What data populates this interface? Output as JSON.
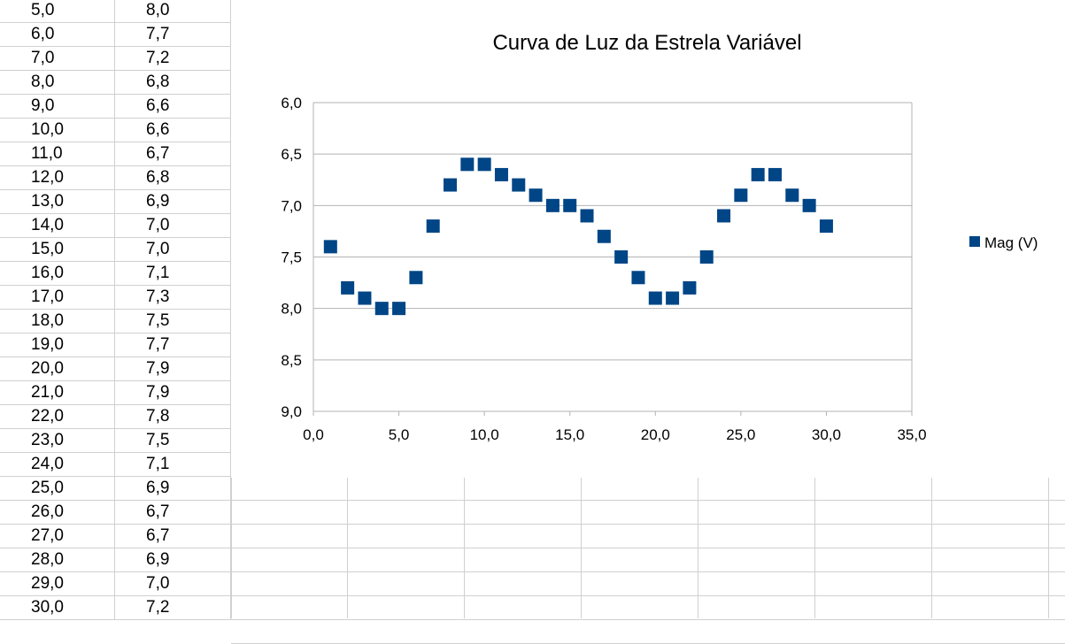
{
  "sheet": {
    "rows": [
      [
        "5,0",
        "8,0"
      ],
      [
        "6,0",
        "7,7"
      ],
      [
        "7,0",
        "7,2"
      ],
      [
        "8,0",
        "6,8"
      ],
      [
        "9,0",
        "6,6"
      ],
      [
        "10,0",
        "6,6"
      ],
      [
        "11,0",
        "6,7"
      ],
      [
        "12,0",
        "6,8"
      ],
      [
        "13,0",
        "6,9"
      ],
      [
        "14,0",
        "7,0"
      ],
      [
        "15,0",
        "7,0"
      ],
      [
        "16,0",
        "7,1"
      ],
      [
        "17,0",
        "7,3"
      ],
      [
        "18,0",
        "7,5"
      ],
      [
        "19,0",
        "7,7"
      ],
      [
        "20,0",
        "7,9"
      ],
      [
        "21,0",
        "7,9"
      ],
      [
        "22,0",
        "7,8"
      ],
      [
        "23,0",
        "7,5"
      ],
      [
        "24,0",
        "7,1"
      ],
      [
        "25,0",
        "6,9"
      ],
      [
        "26,0",
        "6,7"
      ],
      [
        "27,0",
        "6,7"
      ],
      [
        "28,0",
        "6,9"
      ],
      [
        "29,0",
        "7,0"
      ],
      [
        "30,0",
        "7,2"
      ]
    ]
  },
  "chart_data": {
    "type": "scatter",
    "title": "Curva de Luz da Estrela Variável",
    "xlabel": "",
    "ylabel": "",
    "xlim": [
      0,
      35
    ],
    "ylim": [
      6,
      9
    ],
    "y_inverted": true,
    "x_ticks": [
      "0,0",
      "5,0",
      "10,0",
      "15,0",
      "20,0",
      "25,0",
      "30,0",
      "35,0"
    ],
    "y_ticks": [
      "6,0",
      "6,5",
      "7,0",
      "7,5",
      "8,0",
      "8,5",
      "9,0"
    ],
    "grid": "horizontal",
    "legend_position": "right",
    "series": [
      {
        "name": "Mag (V)",
        "color": "#004586",
        "marker": "square",
        "x": [
          1,
          2,
          3,
          4,
          5,
          6,
          7,
          8,
          9,
          10,
          11,
          12,
          13,
          14,
          15,
          16,
          17,
          18,
          19,
          20,
          21,
          22,
          23,
          24,
          25,
          26,
          27,
          28,
          29,
          30
        ],
        "y": [
          7.4,
          7.8,
          7.9,
          8.0,
          8.0,
          7.7,
          7.2,
          6.8,
          6.6,
          6.6,
          6.7,
          6.8,
          6.9,
          7.0,
          7.0,
          7.1,
          7.3,
          7.5,
          7.7,
          7.9,
          7.9,
          7.8,
          7.5,
          7.1,
          6.9,
          6.7,
          6.7,
          6.9,
          7.0,
          7.2
        ]
      }
    ]
  }
}
